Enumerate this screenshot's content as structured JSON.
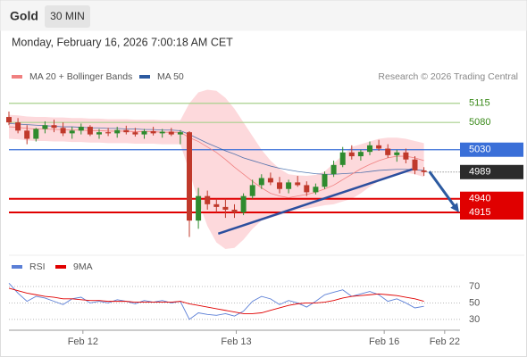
{
  "header": {
    "symbol": "Gold",
    "interval": "30 MIN",
    "timestamp": "Monday, February 16, 2026 7:00:18 AM CET"
  },
  "chart_data": {
    "type": "candlestick",
    "legend": [
      {
        "name": "MA 20 + Bollinger Bands",
        "color": "#f08080"
      },
      {
        "name": "MA 50",
        "color": "#2c5aa0"
      }
    ],
    "credit": "Research © 2026 Trading Central",
    "xlim": [
      0,
      50
    ],
    "ylim": [
      4843,
      5149
    ],
    "xticks": [
      {
        "value": 8.2,
        "label": "Feb 12"
      },
      {
        "value": 25.2,
        "label": "Feb 13"
      },
      {
        "value": 41.6,
        "label": "Feb 16"
      },
      {
        "value": 48.3,
        "label": "Feb 22"
      }
    ],
    "up_color": "#2e8b2e",
    "down_color": "#c0392b",
    "ohlc": [
      [
        5090,
        5100,
        5075,
        5080
      ],
      [
        5080,
        5088,
        5060,
        5065
      ],
      [
        5065,
        5075,
        5040,
        5050
      ],
      [
        5050,
        5070,
        5045,
        5068
      ],
      [
        5068,
        5082,
        5060,
        5075
      ],
      [
        5075,
        5085,
        5062,
        5070
      ],
      [
        5070,
        5080,
        5055,
        5060
      ],
      [
        5060,
        5072,
        5050,
        5065
      ],
      [
        5065,
        5078,
        5058,
        5072
      ],
      [
        5072,
        5075,
        5055,
        5058
      ],
      [
        5058,
        5068,
        5050,
        5062
      ],
      [
        5062,
        5070,
        5055,
        5060
      ],
      [
        5060,
        5072,
        5052,
        5066
      ],
      [
        5066,
        5074,
        5058,
        5062
      ],
      [
        5062,
        5070,
        5054,
        5058
      ],
      [
        5058,
        5068,
        5050,
        5064
      ],
      [
        5064,
        5072,
        5056,
        5060
      ],
      [
        5060,
        5068,
        5052,
        5063
      ],
      [
        5063,
        5070,
        5055,
        5058
      ],
      [
        5058,
        5066,
        5040,
        5062
      ],
      [
        5062,
        5064,
        4870,
        4900
      ],
      [
        4900,
        4960,
        4885,
        4945
      ],
      [
        4945,
        4955,
        4920,
        4930
      ],
      [
        4930,
        4940,
        4915,
        4925
      ],
      [
        4925,
        4940,
        4905,
        4920
      ],
      [
        4920,
        4930,
        4905,
        4915
      ],
      [
        4915,
        4950,
        4910,
        4945
      ],
      [
        4945,
        4975,
        4940,
        4965
      ],
      [
        4965,
        4985,
        4958,
        4978
      ],
      [
        4978,
        4988,
        4965,
        4970
      ],
      [
        4970,
        4980,
        4950,
        4958
      ],
      [
        4958,
        4975,
        4950,
        4970
      ],
      [
        4970,
        4982,
        4962,
        4965
      ],
      [
        4965,
        4972,
        4945,
        4952
      ],
      [
        4952,
        4968,
        4948,
        4962
      ],
      [
        4962,
        4990,
        4958,
        4985
      ],
      [
        4985,
        5010,
        4980,
        5002
      ],
      [
        5002,
        5035,
        4998,
        5025
      ],
      [
        5025,
        5038,
        5012,
        5018
      ],
      [
        5018,
        5030,
        5010,
        5026
      ],
      [
        5026,
        5045,
        5020,
        5038
      ],
      [
        5038,
        5048,
        5028,
        5032
      ],
      [
        5032,
        5040,
        5015,
        5020
      ],
      [
        5020,
        5030,
        5008,
        5025
      ],
      [
        5025,
        5032,
        5005,
        5012
      ],
      [
        5012,
        5018,
        4985,
        4992
      ],
      [
        4992,
        4998,
        4982,
        4989
      ]
    ],
    "ma20": [
      5072,
      5071,
      5069,
      5068,
      5068,
      5067,
      5067,
      5066,
      5066,
      5065,
      5065,
      5064,
      5064,
      5064,
      5063,
      5063,
      5063,
      5062,
      5062,
      5062,
      5052,
      5045,
      5035,
      5025,
      5012,
      4998,
      4985,
      4972,
      4960,
      4950,
      4945,
      4942,
      4945,
      4948,
      4952,
      4958,
      4965,
      4975,
      4985,
      4995,
      5003,
      5010,
      5015,
      5018,
      5018,
      5015,
      5010
    ],
    "bollinger": {
      "color": "#fdd9dc",
      "upper": [
        5094,
        5093,
        5091,
        5090,
        5090,
        5089,
        5089,
        5088,
        5088,
        5087,
        5087,
        5086,
        5086,
        5086,
        5085,
        5085,
        5085,
        5084,
        5084,
        5084,
        5115,
        5135,
        5140,
        5138,
        5125,
        5105,
        5080,
        5055,
        5030,
        5010,
        4995,
        4985,
        4983,
        4982,
        4984,
        4990,
        5005,
        5020,
        5035,
        5040,
        5045,
        5050,
        5052,
        5052,
        5050,
        5046,
        5042
      ],
      "lower": [
        5050,
        5049,
        5047,
        5046,
        5046,
        5045,
        5045,
        5044,
        5044,
        5043,
        5043,
        5042,
        5042,
        5042,
        5041,
        5041,
        5041,
        5040,
        5040,
        5040,
        4990,
        4935,
        4890,
        4860,
        4848,
        4850,
        4865,
        4885,
        4900,
        4905,
        4910,
        4915,
        4920,
        4922,
        4925,
        4928,
        4930,
        4935,
        4940,
        4950,
        4962,
        4972,
        4980,
        4985,
        4988,
        4985,
        4980
      ]
    },
    "ma50": [
      5078,
      5077,
      5076,
      5075,
      5074,
      5073,
      5072,
      5072,
      5071,
      5070,
      5070,
      5069,
      5069,
      5068,
      5068,
      5067,
      5067,
      5066,
      5066,
      5065,
      5058,
      5050,
      5042,
      5035,
      5028,
      5022,
      5015,
      5010,
      5005,
      5000,
      4996,
      4993,
      4990,
      4988,
      4986,
      4985,
      4985,
      4986,
      4987,
      4988,
      4990,
      4992,
      4993,
      4994,
      4994,
      4993,
      4992
    ],
    "levels": [
      {
        "value": 5115,
        "color": "#a8d08d",
        "boxed": false
      },
      {
        "value": 5080,
        "color": "#a8d08d",
        "boxed": false
      },
      {
        "value": 5030,
        "color": "#3a6fd8",
        "boxed": true
      },
      {
        "value": 4940,
        "color": "#e00000",
        "boxed": true
      },
      {
        "value": 4915,
        "color": "#e00000",
        "boxed": true
      }
    ],
    "last_price": {
      "value": 4989,
      "color": "#2b2b2b"
    },
    "trendline": {
      "color": "#2c4f9e",
      "start": [
        23.2,
        4876
      ],
      "end": [
        44.7,
        4994
      ]
    },
    "forecast_arrow": {
      "color": "#2c5aa0",
      "start": [
        46.6,
        4990
      ],
      "end": [
        49.9,
        4915
      ]
    },
    "rsi": {
      "legend": [
        {
          "name": "RSI",
          "color": "#5b7fd6"
        },
        {
          "name": "9MA",
          "color": "#e00000"
        }
      ],
      "ylim": [
        19,
        82
      ],
      "yticks": [
        70,
        50,
        30
      ],
      "values": [
        74,
        62,
        52,
        58,
        56,
        52,
        48,
        55,
        57,
        50,
        52,
        50,
        54,
        52,
        49,
        53,
        51,
        53,
        50,
        52,
        30,
        38,
        36,
        35,
        37,
        34,
        40,
        52,
        58,
        55,
        48,
        53,
        50,
        45,
        52,
        60,
        63,
        66,
        58,
        61,
        64,
        60,
        52,
        55,
        50,
        44,
        46
      ],
      "ma": [
        68,
        65,
        62,
        60,
        58,
        57,
        55,
        55,
        54,
        53,
        53,
        52,
        52,
        52,
        51,
        51,
        51,
        51,
        51,
        52,
        49,
        47,
        45,
        43,
        41,
        39,
        37,
        37,
        38,
        41,
        44,
        47,
        49,
        50,
        50,
        51,
        53,
        56,
        58,
        59,
        60,
        61,
        60,
        59,
        57,
        55,
        52
      ]
    }
  }
}
